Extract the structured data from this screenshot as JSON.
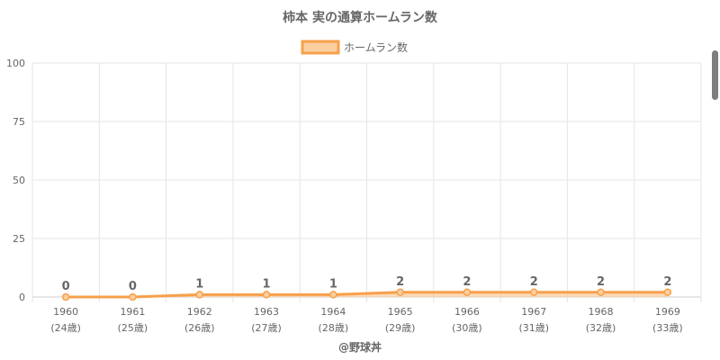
{
  "chart_data": {
    "type": "area",
    "title": "柿本 実の通算ホームラン数",
    "footer": "@野球丼",
    "categories": [
      "1960",
      "1961",
      "1962",
      "1963",
      "1964",
      "1965",
      "1966",
      "1967",
      "1968",
      "1969"
    ],
    "sublabels": [
      "(24歳)",
      "(25歳)",
      "(26歳)",
      "(27歳)",
      "(28歳)",
      "(29歳)",
      "(30歳)",
      "(31歳)",
      "(32歳)",
      "(33歳)"
    ],
    "series": [
      {
        "name": "ホームラン数",
        "values": [
          0,
          0,
          1,
          1,
          1,
          2,
          2,
          2,
          2,
          2
        ]
      }
    ],
    "ylim": [
      0,
      100
    ],
    "yticks": [
      0,
      25,
      50,
      75,
      100
    ],
    "legend": "top-center",
    "grid": true,
    "colors": {
      "line": "#f7a04b",
      "fill": "#fbcf9f",
      "grid": "#e5e5e5",
      "text": "#666666",
      "title": "#666666"
    }
  },
  "ui": {
    "scrollbar": "vertical-scrollbar"
  }
}
